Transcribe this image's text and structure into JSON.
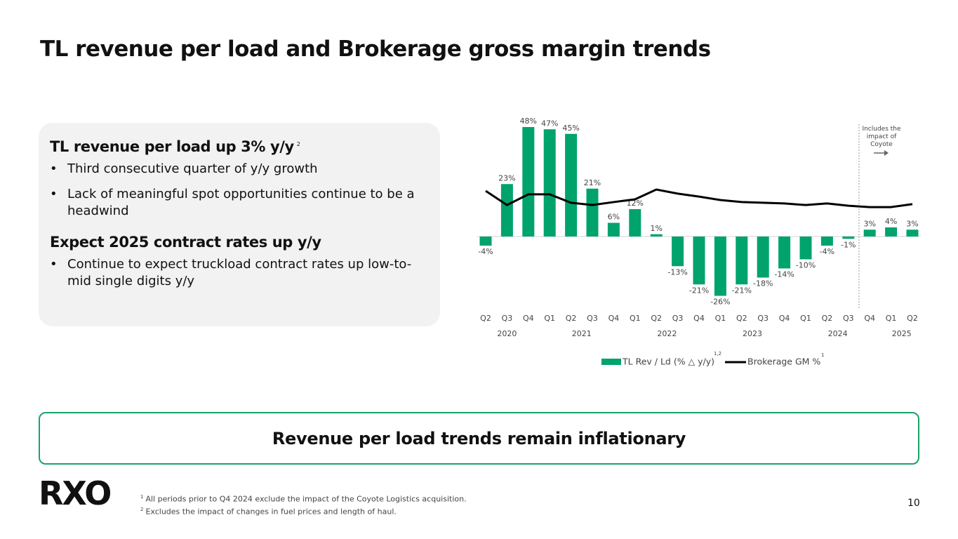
{
  "header": {
    "title": "TL revenue per load and Brokerage gross margin trends"
  },
  "summary": {
    "sections": [
      {
        "heading": "TL revenue per load up 3% y/y",
        "note": "2",
        "bullets": [
          "Third consecutive quarter of y/y growth",
          "Lack of meaningful spot opportunities continue to be a headwind"
        ]
      },
      {
        "heading": "Expect 2025 contract rates up y/y",
        "bullets": [
          "Continue to expect truckload contract rates up low-to-mid single digits y/y"
        ]
      }
    ]
  },
  "chart_data": {
    "type": "bar",
    "categories": [
      "Q2",
      "Q3",
      "Q4",
      "Q1",
      "Q2",
      "Q3",
      "Q4",
      "Q1",
      "Q2",
      "Q3",
      "Q4",
      "Q1",
      "Q2",
      "Q3",
      "Q4",
      "Q1",
      "Q2",
      "Q3",
      "Q4",
      "Q1",
      "Q2"
    ],
    "year_labels": [
      "2020",
      "2021",
      "2022",
      "2023",
      "2024",
      "2025"
    ],
    "series": [
      {
        "name": "TL Rev / Ld (% △ y/y)",
        "name_note": "1,2",
        "type": "bar",
        "color": "#00a36c",
        "values": [
          -4,
          23,
          48,
          47,
          45,
          21,
          6,
          12,
          1,
          -13,
          -21,
          -26,
          -21,
          -18,
          -14,
          -10,
          -4,
          -1,
          3,
          4,
          3
        ],
        "value_labels": [
          "-4%",
          "23%",
          "48%",
          "47%",
          "45%",
          "21%",
          "6%",
          "12%",
          "1%",
          "-13%",
          "-21%",
          "-26%",
          "-21%",
          "-18%",
          "-14%",
          "-10%",
          "-4%",
          "-1%",
          "3%",
          "4%",
          "3%"
        ]
      },
      {
        "name": "Brokerage GM %",
        "name_note": "1",
        "type": "line",
        "color": "#000000",
        "values": [
          20,
          13.8,
          18.5,
          18.5,
          14.8,
          13.8,
          15.1,
          16.3,
          20.6,
          18.8,
          17.5,
          16,
          15.1,
          14.8,
          14.5,
          13.8,
          14.5,
          13.5,
          12.9,
          12.9,
          14.2
        ]
      }
    ],
    "ylim": [
      -30,
      50
    ],
    "annotation": "Includes the impact of Coyote"
  },
  "banner": "Revenue per load trends remain inflationary",
  "logo": "RXO",
  "footnotes": [
    {
      "marker": "1",
      "text": "All periods prior to Q4 2024 exclude the impact of the Coyote Logistics acquisition."
    },
    {
      "marker": "2",
      "text": "Excludes the impact of changes in fuel prices and length of haul."
    }
  ],
  "page_number": "10"
}
